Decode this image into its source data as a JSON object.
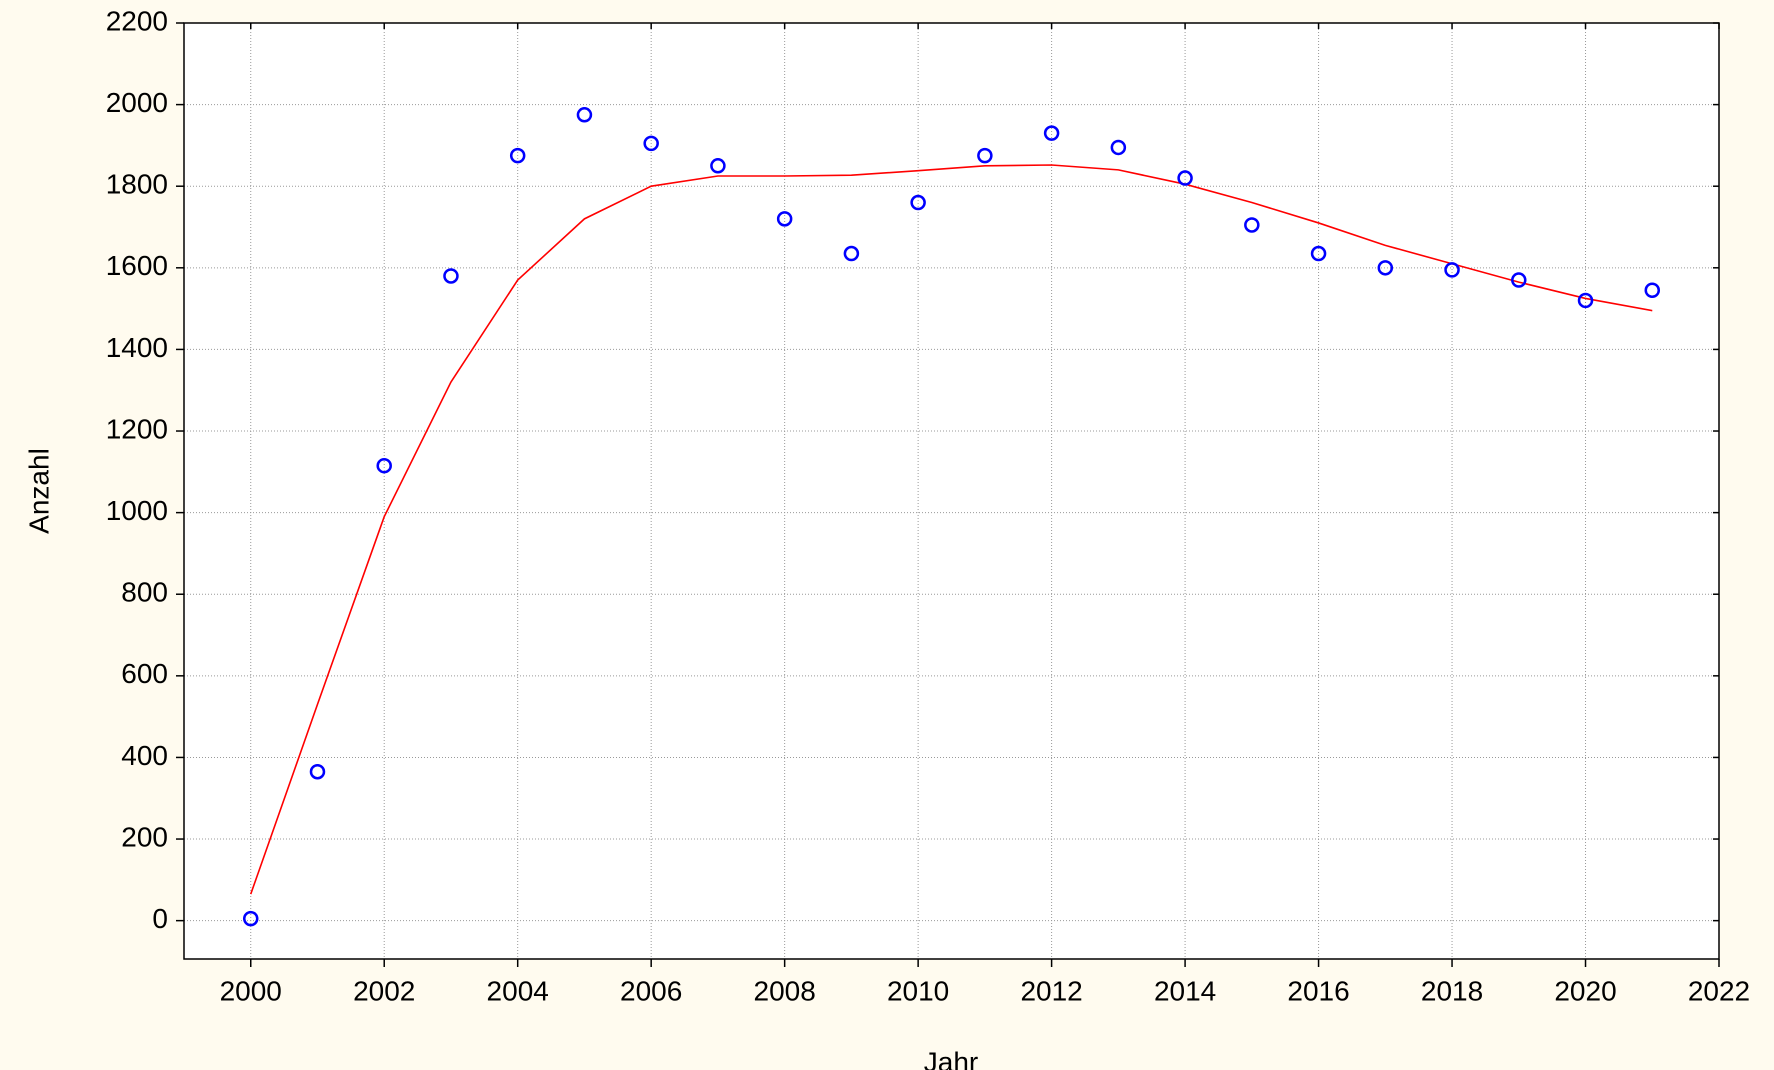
{
  "chart_data": {
    "type": "scatter",
    "x_label": "Jahr",
    "y_label": "Anzahl",
    "xlim": [
      1999,
      2022
    ],
    "xticks": [
      2000,
      2002,
      2004,
      2006,
      2008,
      2010,
      2012,
      2014,
      2016,
      2018,
      2020,
      2022
    ],
    "ylim": [
      -94,
      2200
    ],
    "yticks": [
      0,
      200,
      400,
      600,
      800,
      1000,
      1200,
      1400,
      1600,
      1800,
      2000,
      2200
    ],
    "grid": true,
    "points": {
      "color": "#0000ff",
      "x": [
        2000,
        2001,
        2002,
        2003,
        2004,
        2005,
        2006,
        2007,
        2008,
        2009,
        2010,
        2011,
        2012,
        2013,
        2014,
        2015,
        2016,
        2017,
        2018,
        2019,
        2020,
        2021
      ],
      "values": [
        5,
        365,
        1115,
        1580,
        1875,
        1975,
        1905,
        1850,
        1720,
        1635,
        1760,
        1875,
        1930,
        1895,
        1820,
        1705,
        1635,
        1600,
        1595,
        1570,
        1520,
        1545
      ]
    },
    "fit": {
      "color": "#ff0000",
      "x": [
        2000,
        2001,
        2002,
        2003,
        2004,
        2005,
        2006,
        2007,
        2008,
        2009,
        2010,
        2011,
        2012,
        2013,
        2014,
        2015,
        2016,
        2017,
        2018,
        2019,
        2020,
        2021
      ],
      "values": [
        65,
        530,
        990,
        1320,
        1570,
        1720,
        1800,
        1825,
        1825,
        1827,
        1838,
        1850,
        1852,
        1840,
        1805,
        1760,
        1710,
        1655,
        1610,
        1565,
        1525,
        1495
      ]
    }
  }
}
